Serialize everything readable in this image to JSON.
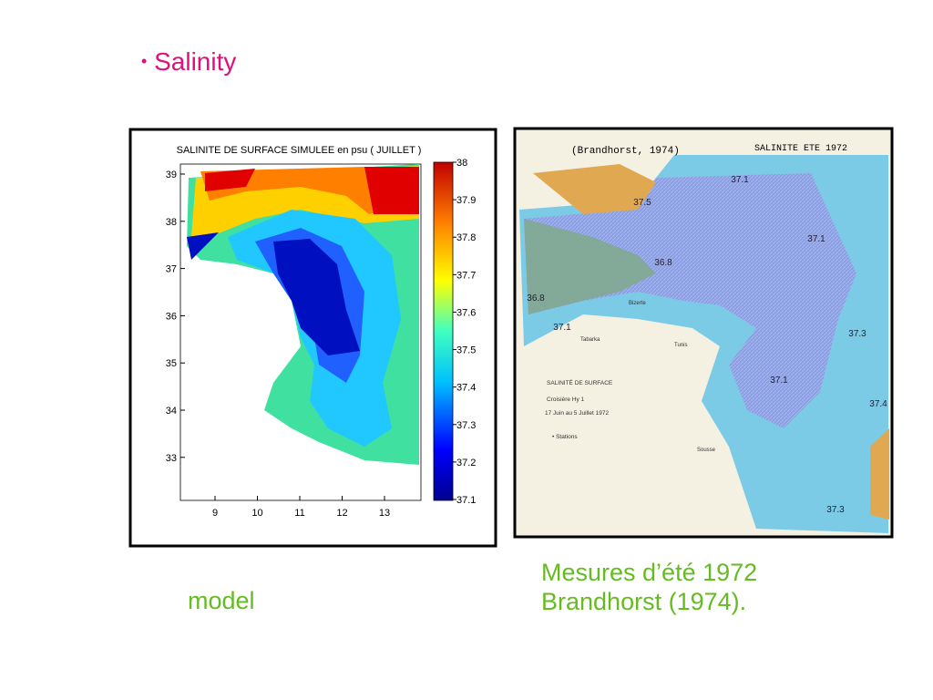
{
  "title": "Salinity",
  "model_figure": {
    "title": "SALINITE DE SURFACE SIMULEE en psu ( JUILLET )",
    "xticks": [
      "9",
      "10",
      "11",
      "12",
      "13"
    ],
    "yticks": [
      "39",
      "38",
      "37",
      "36",
      "35",
      "34",
      "33"
    ],
    "colorbar_ticks": [
      "38",
      "37.9",
      "37.8",
      "37.7",
      "37.6",
      "37.5",
      "37.4",
      "37.3",
      "37.2",
      "37.1"
    ]
  },
  "model_caption": "model",
  "measure_figure": {
    "header_left": "(Brandhorst, 1974)",
    "header_right": "SALINITE ETE 1972",
    "contour_labels": [
      "37.1",
      "37.5",
      "37.1",
      "36.8",
      "36.8",
      "37.1",
      "37.3",
      "37.1",
      "37.4",
      "37.3"
    ],
    "legend_lines": [
      "SALINITÉ DE SURFACE",
      "Croisière Hy 1",
      "17 Juin au 5 Juillet 1972",
      "• Stations"
    ],
    "places": [
      "Bizerte",
      "Tabarka",
      "Tunis",
      "Sousse"
    ]
  },
  "measure_caption": [
    "Mesures d’été 1972",
    "Brandhorst (1974)."
  ]
}
